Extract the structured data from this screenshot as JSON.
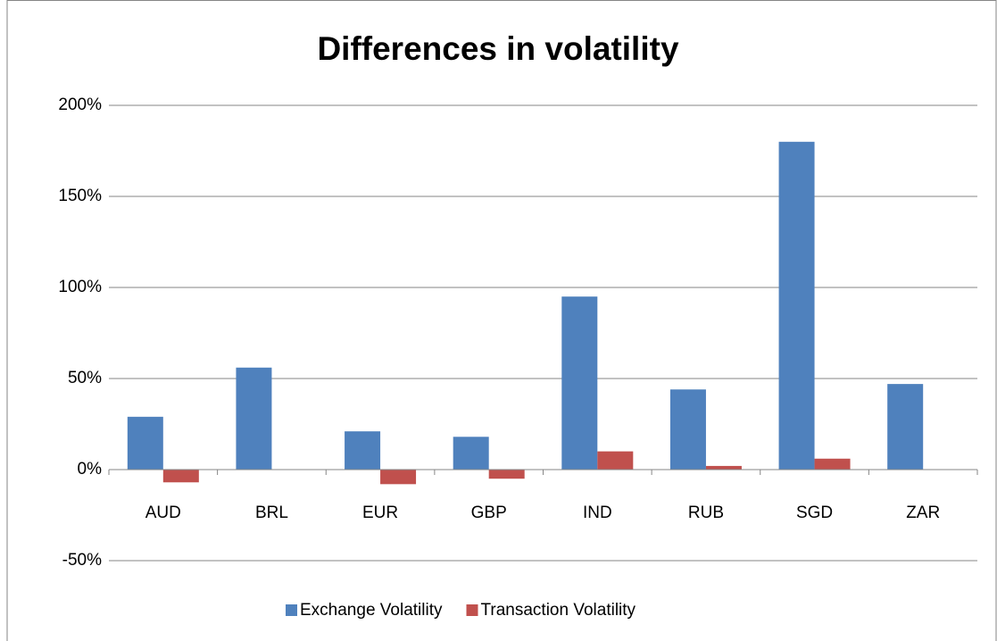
{
  "chart_data": {
    "type": "bar",
    "title": "Differences in volatility",
    "categories": [
      "AUD",
      "BRL",
      "EUR",
      "GBP",
      "IND",
      "RUB",
      "SGD",
      "ZAR"
    ],
    "series": [
      {
        "name": "Exchange Volatility",
        "color": "#4f81bd",
        "values": [
          29,
          56,
          21,
          18,
          95,
          44,
          180,
          47
        ]
      },
      {
        "name": "Transaction Volatility",
        "color": "#c0504d",
        "values": [
          -7,
          0,
          -8,
          -5,
          10,
          2,
          6,
          0
        ]
      }
    ],
    "ylim": [
      -50,
      200
    ],
    "yticks": [
      {
        "value": -50,
        "label": "-50%"
      },
      {
        "value": 0,
        "label": "0%"
      },
      {
        "value": 50,
        "label": "50%"
      },
      {
        "value": 100,
        "label": "100%"
      },
      {
        "value": 150,
        "label": "150%"
      },
      {
        "value": 200,
        "label": "200%"
      }
    ],
    "grid": true,
    "legend": "bottom"
  }
}
